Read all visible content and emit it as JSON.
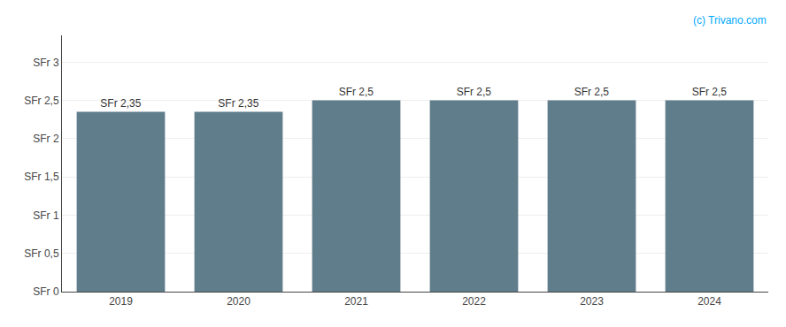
{
  "chart_data": {
    "type": "bar",
    "categories": [
      "2019",
      "2020",
      "2021",
      "2022",
      "2023",
      "2024"
    ],
    "values": [
      2.35,
      2.35,
      2.5,
      2.5,
      2.5,
      2.5
    ],
    "value_labels": [
      "SFr 2,35",
      "SFr 2,35",
      "SFr 2,5",
      "SFr 2,5",
      "SFr 2,5",
      "SFr 2,5"
    ],
    "data_labels": true,
    "color": "#607d8b",
    "ylim": [
      0,
      3.35
    ],
    "yticks": [
      {
        "value": 0,
        "label": "SFr 0"
      },
      {
        "value": 0.5,
        "label": "SFr 0,5"
      },
      {
        "value": 1.0,
        "label": "SFr 1"
      },
      {
        "value": 1.5,
        "label": "SFr 1,5"
      },
      {
        "value": 2.0,
        "label": "SFr 2"
      },
      {
        "value": 2.5,
        "label": "SFr 2,5"
      },
      {
        "value": 3.0,
        "label": "SFr 3"
      }
    ],
    "grid": true,
    "annotations": [
      {
        "text": "(c) Trivano.com",
        "color": "#00aaff"
      }
    ]
  }
}
